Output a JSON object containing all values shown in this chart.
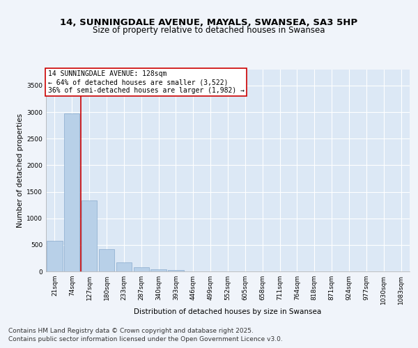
{
  "title_line1": "14, SUNNINGDALE AVENUE, MAYALS, SWANSEA, SA3 5HP",
  "title_line2": "Size of property relative to detached houses in Swansea",
  "xlabel": "Distribution of detached houses by size in Swansea",
  "ylabel": "Number of detached properties",
  "categories": [
    "21sqm",
    "74sqm",
    "127sqm",
    "180sqm",
    "233sqm",
    "287sqm",
    "340sqm",
    "393sqm",
    "446sqm",
    "499sqm",
    "552sqm",
    "605sqm",
    "658sqm",
    "711sqm",
    "764sqm",
    "818sqm",
    "871sqm",
    "924sqm",
    "977sqm",
    "1030sqm",
    "1083sqm"
  ],
  "values": [
    580,
    2970,
    1340,
    420,
    175,
    80,
    40,
    20,
    0,
    0,
    0,
    0,
    0,
    0,
    0,
    0,
    0,
    0,
    0,
    0,
    0
  ],
  "bar_color": "#b8d0e8",
  "bar_edge_color": "#88aacc",
  "vline_color": "#cc0000",
  "annotation_text": "14 SUNNINGDALE AVENUE: 128sqm\n← 64% of detached houses are smaller (3,522)\n36% of semi-detached houses are larger (1,982) →",
  "annotation_box_color": "#ffffff",
  "annotation_box_edge_color": "#cc0000",
  "ylim": [
    0,
    3800
  ],
  "yticks": [
    0,
    500,
    1000,
    1500,
    2000,
    2500,
    3000,
    3500
  ],
  "bg_color": "#f0f4fa",
  "plot_bg_color": "#dce8f5",
  "footer_line1": "Contains HM Land Registry data © Crown copyright and database right 2025.",
  "footer_line2": "Contains public sector information licensed under the Open Government Licence v3.0.",
  "grid_color": "#ffffff",
  "title_fontsize": 9.5,
  "subtitle_fontsize": 8.5,
  "axis_label_fontsize": 7.5,
  "tick_fontsize": 6.5,
  "annotation_fontsize": 7,
  "footer_fontsize": 6.5
}
